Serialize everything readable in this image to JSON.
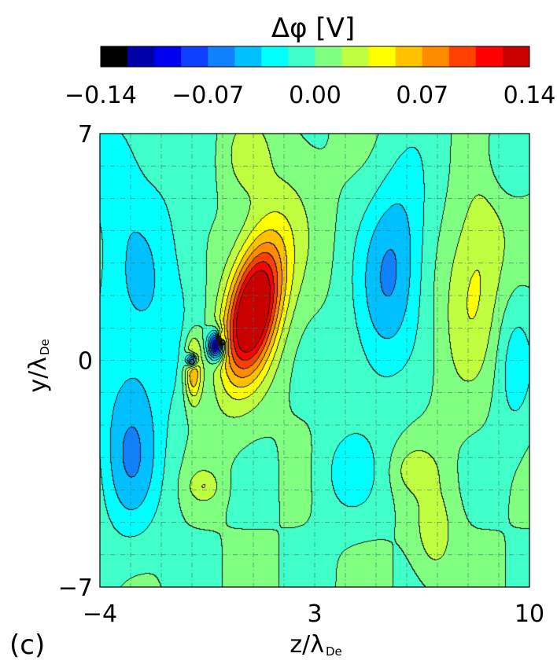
{
  "chart_data": {
    "type": "heatmap",
    "subtype": "filled-contour",
    "title": "Δφ  [V]",
    "panel_label": "(c)",
    "colorbar": {
      "min": -0.14,
      "max": 0.14,
      "tick_labels": [
        "−0.14",
        "−0.07",
        "0.00",
        "0.07",
        "0.14"
      ],
      "tick_values": [
        -0.14,
        -0.07,
        0.0,
        0.07,
        0.14
      ],
      "colors": [
        "#000000",
        "#0000a8",
        "#0000f0",
        "#1040ff",
        "#1080ff",
        "#00c0ff",
        "#00ffff",
        "#40ffc8",
        "#80ff80",
        "#c0ff40",
        "#ffff00",
        "#ffc000",
        "#ff8c00",
        "#ff4000",
        "#ff0000",
        "#c80000"
      ]
    },
    "x_axis": {
      "label": "z/λ",
      "label_sub": "De",
      "min": -4,
      "max": 10,
      "tick_labels": [
        "−4",
        "3",
        "10"
      ],
      "tick_values": [
        -4,
        3,
        10
      ]
    },
    "y_axis": {
      "label": "y/λ",
      "label_sub": "De",
      "min": -7,
      "max": 7,
      "tick_labels": [
        "−7",
        "0",
        "7"
      ],
      "tick_values": [
        -7,
        0,
        7
      ]
    },
    "grid": true,
    "features": [
      {
        "x": 1.0,
        "y": 1.5,
        "value": 0.135,
        "sx": 0.55,
        "sy": 1.4,
        "rot": 12
      },
      {
        "x": 1.2,
        "y": 2.2,
        "value": 0.04,
        "sx": 0.8,
        "sy": 2.5,
        "rot": 15
      },
      {
        "x": 5.5,
        "y": 2.7,
        "value": -0.055,
        "sx": 0.75,
        "sy": 2.3,
        "rot": 8
      },
      {
        "x": 8.3,
        "y": 2.7,
        "value": 0.04,
        "sx": 0.7,
        "sy": 2.3,
        "rot": 8
      },
      {
        "x": -0.2,
        "y": 0.45,
        "value": -0.14,
        "sx": 0.18,
        "sy": 0.3,
        "rot": 0
      },
      {
        "x": -0.05,
        "y": 0.7,
        "value": 0.06,
        "sx": 0.08,
        "sy": 0.12,
        "rot": 0
      },
      {
        "x": -0.95,
        "y": -0.3,
        "value": 0.08,
        "sx": 0.2,
        "sy": 0.7,
        "rot": 0
      },
      {
        "x": -1.0,
        "y": 0.0,
        "value": -0.12,
        "sx": 0.13,
        "sy": 0.15,
        "rot": 0
      },
      {
        "x": -2.6,
        "y": 2.0,
        "value": -0.035,
        "sx": 1.2,
        "sy": 2.8,
        "rot": 0
      },
      {
        "x": -3.0,
        "y": -3.0,
        "value": -0.045,
        "sx": 0.7,
        "sy": 1.8,
        "rot": 0
      },
      {
        "x": -3.6,
        "y": 6.0,
        "value": -0.025,
        "sx": 0.6,
        "sy": 1.2,
        "rot": 0
      },
      {
        "x": 9.5,
        "y": -0.2,
        "value": -0.025,
        "sx": 0.45,
        "sy": 1.6,
        "rot": 0
      },
      {
        "x": 9.2,
        "y": 6.2,
        "value": -0.025,
        "sx": 0.5,
        "sy": 1.0,
        "rot": 0
      },
      {
        "x": 4.1,
        "y": -3.5,
        "value": -0.025,
        "sx": 0.7,
        "sy": 1.0,
        "rot": 0
      },
      {
        "x": 6.9,
        "y": -5.3,
        "value": 0.03,
        "sx": 0.45,
        "sy": 1.0,
        "rot": 0
      },
      {
        "x": 6.3,
        "y": -3.4,
        "value": 0.025,
        "sx": 0.5,
        "sy": 0.5,
        "rot": 0
      },
      {
        "x": -0.6,
        "y": -3.9,
        "value": 0.03,
        "sx": 0.35,
        "sy": 0.35,
        "rot": 0
      },
      {
        "x": 0.8,
        "y": 6.3,
        "value": 0.025,
        "sx": 0.5,
        "sy": 0.8,
        "rot": 0
      }
    ],
    "markers": [
      {
        "x": -1.0,
        "y": -0.05
      },
      {
        "x": 0.0,
        "y": 0.55
      }
    ]
  }
}
